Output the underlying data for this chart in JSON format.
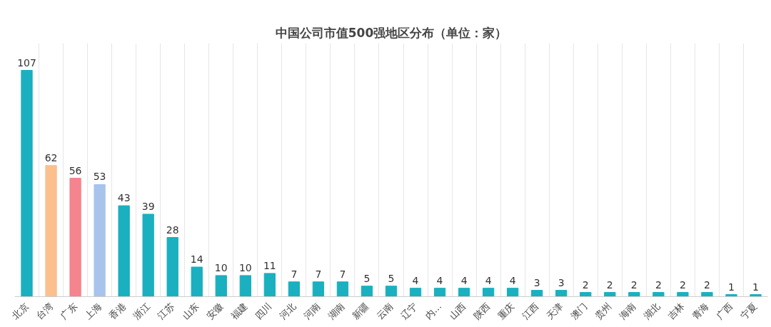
{
  "chart_data": {
    "type": "bar",
    "title": "中国公司市值500强地区分布（单位：家）",
    "categories": [
      "北京",
      "台湾",
      "广东",
      "上海",
      "香港",
      "浙江",
      "江苏",
      "山东",
      "安徽",
      "福建",
      "四川",
      "河北",
      "河南",
      "湖南",
      "新疆",
      "云南",
      "辽宁",
      "内…",
      "山西",
      "陕西",
      "重庆",
      "江西",
      "天津",
      "澳门",
      "贵州",
      "海南",
      "湖北",
      "吉林",
      "青海",
      "广西",
      "宁夏"
    ],
    "values": [
      107,
      62,
      56,
      53,
      43,
      39,
      28,
      14,
      10,
      10,
      11,
      7,
      7,
      7,
      5,
      5,
      4,
      4,
      4,
      4,
      4,
      3,
      3,
      2,
      2,
      2,
      2,
      2,
      2,
      1,
      1
    ],
    "colors": [
      "#1ab0c0",
      "#fbc08e",
      "#f4848e",
      "#a8c4ec",
      "#1ab0c0",
      "#1ab0c0",
      "#1ab0c0",
      "#1ab0c0",
      "#1ab0c0",
      "#1ab0c0",
      "#1ab0c0",
      "#1ab0c0",
      "#1ab0c0",
      "#1ab0c0",
      "#1ab0c0",
      "#1ab0c0",
      "#1ab0c0",
      "#1ab0c0",
      "#1ab0c0",
      "#1ab0c0",
      "#1ab0c0",
      "#1ab0c0",
      "#1ab0c0",
      "#1ab0c0",
      "#1ab0c0",
      "#1ab0c0",
      "#1ab0c0",
      "#1ab0c0",
      "#1ab0c0",
      "#1ab0c0",
      "#1ab0c0"
    ],
    "data_labels": true,
    "grid": "x"
  }
}
